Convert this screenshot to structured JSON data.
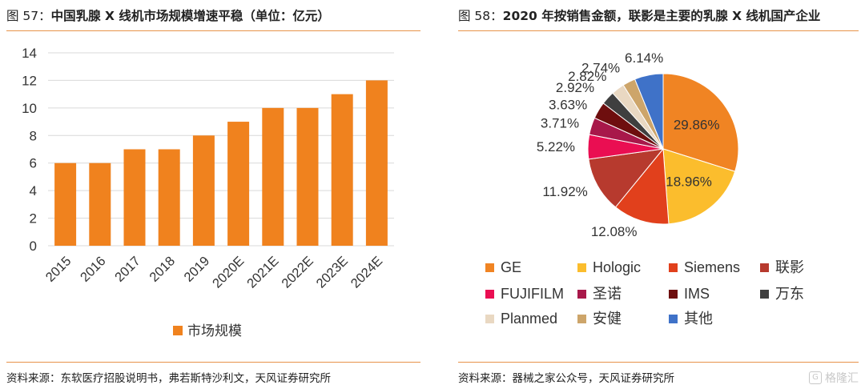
{
  "figures": [
    {
      "number": "图 57：",
      "title": "中国乳腺 X 线机市场规模增速平稳（单位：亿元）",
      "source": "资料来源：东软医疗招股说明书，弗若斯特沙利文，天风证券研究所"
    },
    {
      "number": "图 58：",
      "title": "2020 年按销售金额，联影是主要的乳腺 X 线机国产企业",
      "source": "资料来源：器械之家公众号，天风证券研究所"
    }
  ],
  "watermark": {
    "icon": "gelonghui-logo-icon",
    "text": "格隆汇"
  },
  "chart_data": [
    {
      "type": "bar",
      "categories": [
        "2015",
        "2016",
        "2017",
        "2018",
        "2019",
        "2020E",
        "2021E",
        "2022E",
        "2023E",
        "2024E"
      ],
      "series": [
        {
          "name": "市场规模",
          "values": [
            6,
            6,
            7,
            7,
            8,
            9,
            10,
            10,
            11,
            12
          ],
          "color": "#f0821e"
        }
      ],
      "ylim": [
        0,
        14
      ],
      "yticks": [
        0,
        2,
        4,
        6,
        8,
        10,
        12,
        14
      ],
      "grid": true,
      "legend": "bottom",
      "xlabel": "",
      "ylabel": ""
    },
    {
      "type": "pie",
      "slices": [
        {
          "label": "GE",
          "value": 29.86,
          "text": "29.86%",
          "color": "#f08423"
        },
        {
          "label": "Hologic",
          "value": 18.96,
          "text": "18.96%",
          "color": "#fbbd2d"
        },
        {
          "label": "Siemens",
          "value": 12.08,
          "text": "12.08%",
          "color": "#e1401c"
        },
        {
          "label": "联影",
          "value": 11.92,
          "text": "11.92%",
          "color": "#b73a2e"
        },
        {
          "label": "FUJIFILM",
          "value": 5.22,
          "text": "5.22%",
          "color": "#ea0e52"
        },
        {
          "label": "圣诺",
          "value": 3.71,
          "text": "3.71%",
          "color": "#a8184a"
        },
        {
          "label": "IMS",
          "value": 3.63,
          "text": "3.63%",
          "color": "#6e0e0e"
        },
        {
          "label": "万东",
          "value": 2.92,
          "text": "2.92%",
          "color": "#3f3f3f"
        },
        {
          "label": "Planmed",
          "value": 2.82,
          "text": "2.82%",
          "color": "#e9d8c2"
        },
        {
          "label": "安健",
          "value": 2.74,
          "text": "2.74%",
          "color": "#cda56a"
        },
        {
          "label": "其他",
          "value": 6.14,
          "text": "6.14%",
          "color": "#3f72c8"
        }
      ],
      "legend": "bottom"
    }
  ]
}
